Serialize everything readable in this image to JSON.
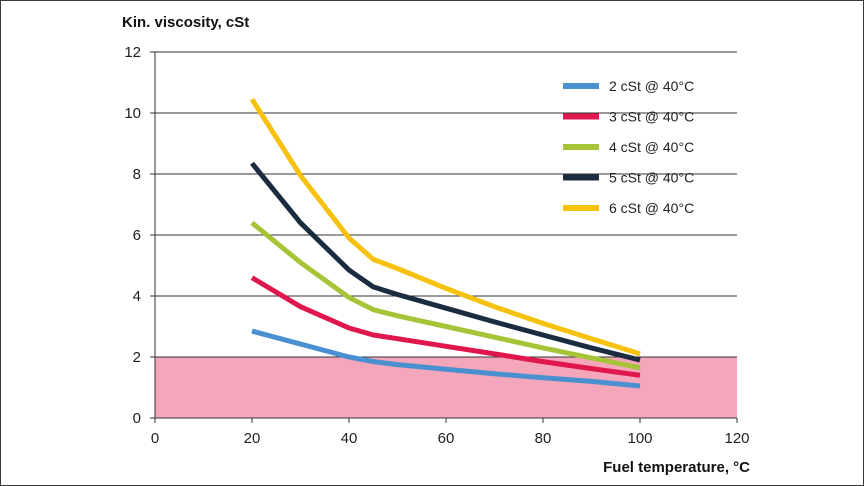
{
  "chart_data": {
    "type": "line",
    "title": "",
    "ylabel": "Kin. viscosity, cSt",
    "xlabel": "Fuel temperature, °C",
    "xlim": [
      0,
      120
    ],
    "ylim": [
      0,
      12
    ],
    "xticks": [
      0,
      20,
      40,
      60,
      80,
      100,
      120
    ],
    "yticks": [
      0,
      2,
      4,
      6,
      8,
      10,
      12
    ],
    "grid": "horizontal",
    "legend_position": "top-right",
    "shaded_band": {
      "y_from": 0,
      "y_to": 2,
      "color": "#f4a7bb"
    },
    "series": [
      {
        "name": "2 cSt @ 40°C",
        "color": "#4a90d0",
        "x": [
          20,
          40,
          45,
          50,
          60,
          70,
          80,
          90,
          100
        ],
        "y": [
          2.85,
          2.0,
          1.85,
          1.75,
          1.6,
          1.45,
          1.32,
          1.2,
          1.05
        ]
      },
      {
        "name": "3 cSt @ 40°C",
        "color": "#e0174c",
        "x": [
          20,
          30,
          40,
          45,
          50,
          60,
          70,
          80,
          90,
          100
        ],
        "y": [
          4.6,
          3.65,
          2.95,
          2.72,
          2.6,
          2.35,
          2.1,
          1.85,
          1.62,
          1.4
        ]
      },
      {
        "name": "4 cSt @ 40°C",
        "color": "#a6c437",
        "x": [
          20,
          30,
          40,
          45,
          50,
          60,
          70,
          80,
          90,
          100
        ],
        "y": [
          6.4,
          5.1,
          3.95,
          3.55,
          3.35,
          3.0,
          2.65,
          2.3,
          1.97,
          1.65
        ]
      },
      {
        "name": "5 cSt @ 40°C",
        "color": "#1b2b40",
        "x": [
          20,
          30,
          40,
          45,
          50,
          60,
          70,
          80,
          90,
          100
        ],
        "y": [
          8.35,
          6.4,
          4.85,
          4.3,
          4.05,
          3.6,
          3.15,
          2.72,
          2.3,
          1.9
        ]
      },
      {
        "name": "6 cSt @ 40°C",
        "color": "#f6c20f",
        "x": [
          20,
          30,
          40,
          45,
          50,
          60,
          70,
          80,
          90,
          100
        ],
        "y": [
          10.45,
          7.95,
          5.9,
          5.2,
          4.9,
          4.25,
          3.65,
          3.1,
          2.6,
          2.1
        ]
      }
    ]
  }
}
